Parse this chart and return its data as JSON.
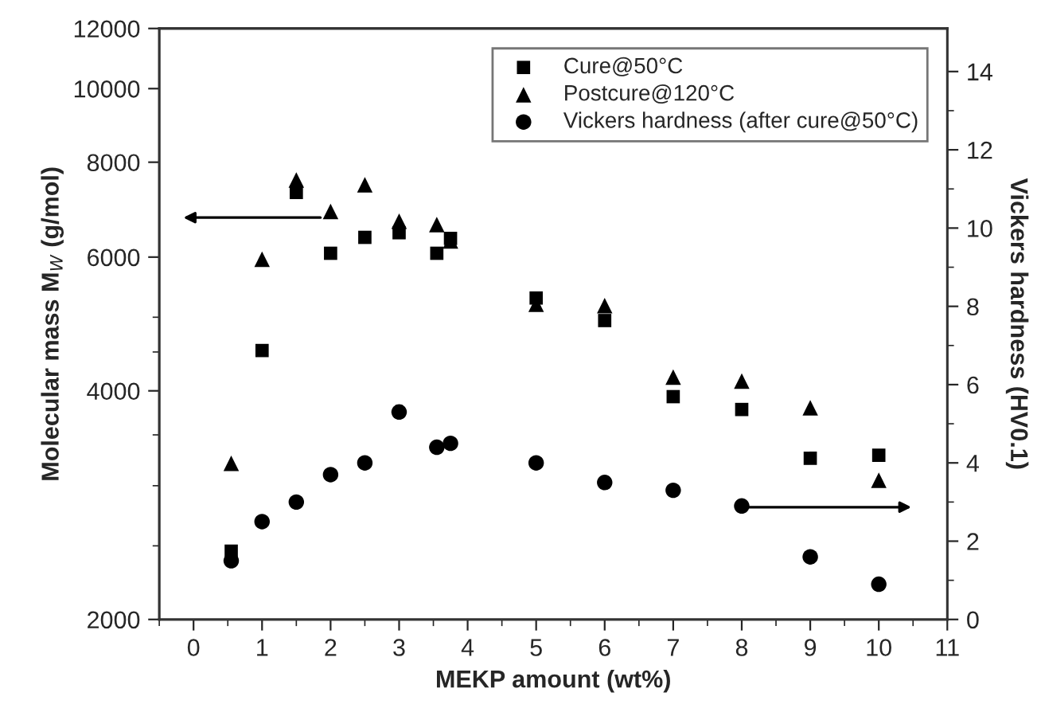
{
  "chart_data": {
    "type": "scatter",
    "xlabel": "MEKP amount (wt%)",
    "ylabel": "Molecular mass M$_{W}$ (g/mol)",
    "y2label": "Vickers hardness (HV0.1)",
    "x": [
      0.55,
      1.0,
      1.5,
      2.0,
      2.5,
      3.0,
      3.55,
      3.75,
      5.0,
      6.0,
      7.0,
      8.0,
      9.0,
      10.0
    ],
    "series": [
      {
        "name": "Cure@50°C",
        "color": "#000000",
        "marker": "square",
        "values": [
          2460,
          4520,
          7300,
          6070,
          6370,
          6460,
          6070,
          6350,
          5300,
          4950,
          3930,
          3780,
          3260,
          3290
        ]
      },
      {
        "name": "Postcure@120°C",
        "color": "#000000",
        "marker": "triangle",
        "values": [
          3210,
          5960,
          7580,
          6890,
          7470,
          6690,
          6620,
          6300,
          5200,
          5180,
          4170,
          4120,
          3800,
          3050
        ]
      },
      {
        "name": "Vickers hardness (after cure@50°C)",
        "color": "#000000",
        "marker": "circle",
        "axis": "y2",
        "values": [
          1.5,
          2.5,
          3.0,
          3.7,
          4.0,
          5.3,
          4.4,
          4.5,
          4.0,
          3.5,
          3.3,
          2.9,
          1.6,
          0.9
        ]
      }
    ],
    "log": "y",
    "xlim": [
      -0.5,
      11
    ],
    "xticks": [
      0,
      1,
      2,
      3,
      4,
      5,
      6,
      7,
      8,
      9,
      10,
      11
    ],
    "ylim": [
      2000,
      12000
    ],
    "yticks": [
      2000,
      4000,
      6000,
      8000,
      10000,
      12000
    ],
    "y2lim": [
      0,
      15.1
    ],
    "y2ticks": [
      0,
      2,
      4,
      6,
      8,
      10,
      12,
      14
    ],
    "grid": false,
    "legend": "top right"
  }
}
